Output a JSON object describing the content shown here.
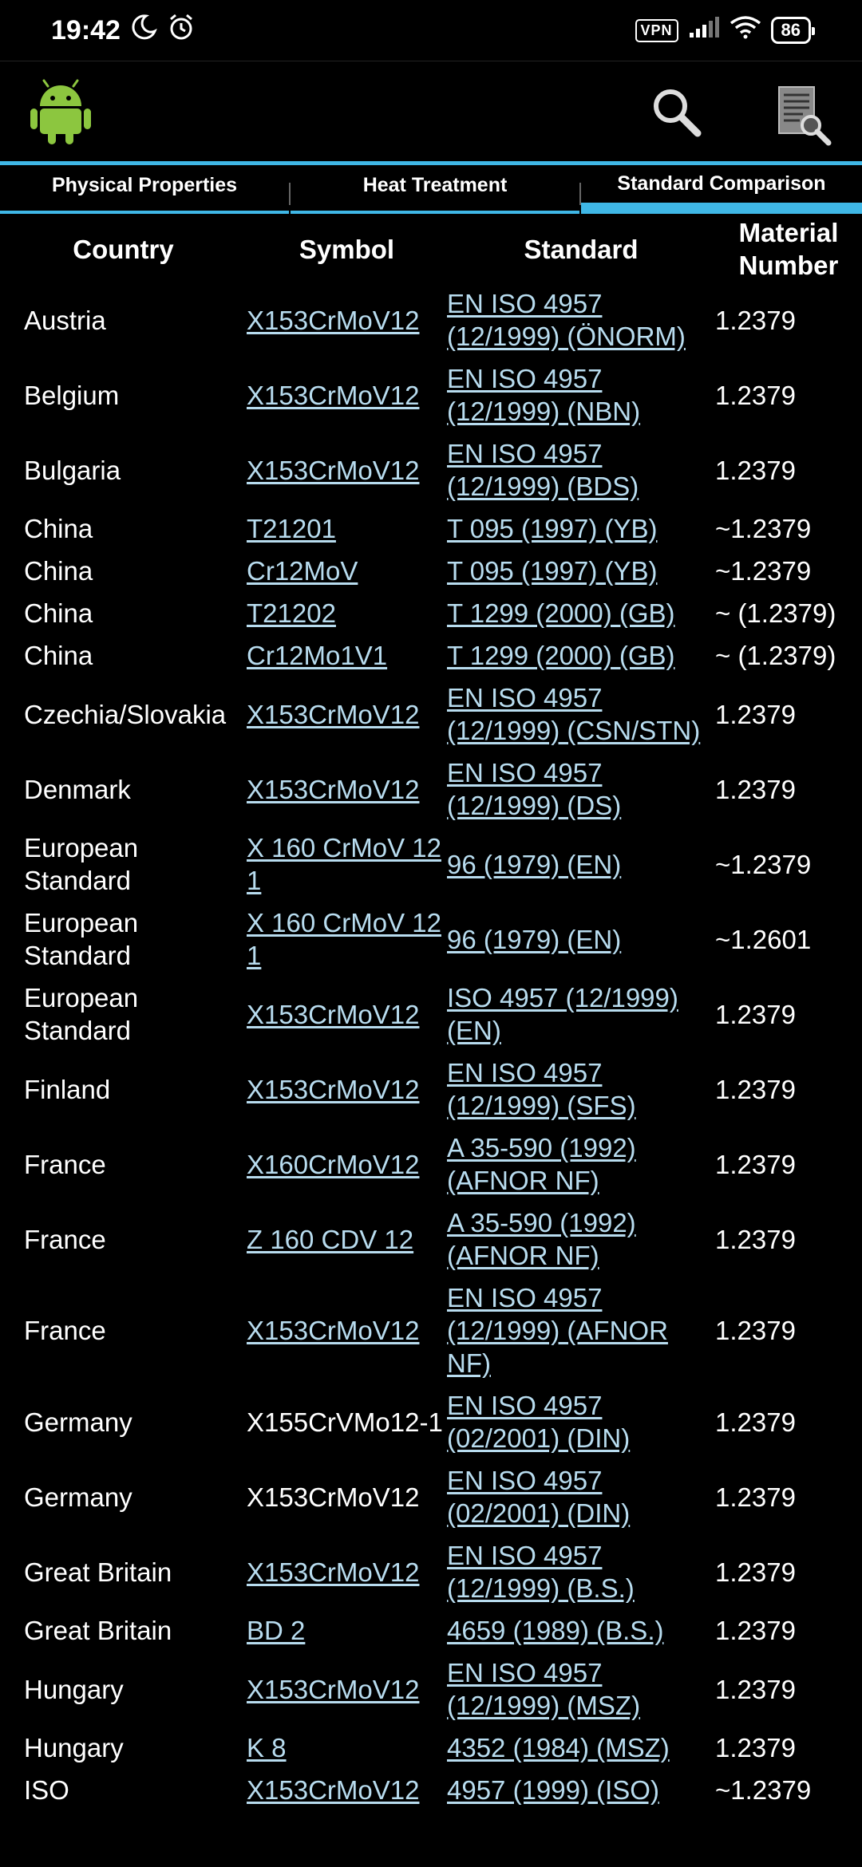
{
  "status_bar": {
    "time": "19:42",
    "vpn_label": "VPN",
    "battery": "86",
    "icons": [
      "moon-icon",
      "alarm-icon",
      "signal-icon",
      "wifi-icon"
    ]
  },
  "app_bar": {
    "icons": [
      "android-logo-icon",
      "search-icon",
      "document-search-icon"
    ]
  },
  "tabs": [
    {
      "label": "Physical Properties"
    },
    {
      "label": "Heat Treatment"
    },
    {
      "label": "Standard Comparison"
    }
  ],
  "colors": {
    "accent": "#3fb7e6",
    "link": "#b8dcef",
    "background": "#000000"
  },
  "table": {
    "headers": [
      "Country",
      "Symbol",
      "Standard",
      "Material Number"
    ],
    "rows": [
      {
        "country": "Austria",
        "symbol": "X153CrMoV12",
        "symbol_link": true,
        "standard": "EN ISO 4957 (12/1999) (ÖNORM)",
        "number": "1.2379"
      },
      {
        "country": "Belgium",
        "symbol": "X153CrMoV12",
        "symbol_link": true,
        "standard": "EN ISO 4957 (12/1999) (NBN)",
        "number": "1.2379"
      },
      {
        "country": "Bulgaria",
        "symbol": "X153CrMoV12",
        "symbol_link": true,
        "standard": "EN ISO 4957 (12/1999) (BDS)",
        "number": "1.2379"
      },
      {
        "country": "China",
        "symbol": "T21201",
        "symbol_link": true,
        "standard": "T 095 (1997) (YB)",
        "number": "~1.2379"
      },
      {
        "country": "China",
        "symbol": "Cr12MoV",
        "symbol_link": true,
        "standard": "T 095 (1997) (YB)",
        "number": "~1.2379"
      },
      {
        "country": "China",
        "symbol": "T21202",
        "symbol_link": true,
        "standard": "T 1299 (2000) (GB)",
        "number": "~ (1.2379)"
      },
      {
        "country": "China",
        "symbol": "Cr12Mo1V1",
        "symbol_link": true,
        "standard": "T 1299 (2000) (GB)",
        "number": "~ (1.2379)"
      },
      {
        "country": "Czechia/Slovakia",
        "symbol": "X153CrMoV12",
        "symbol_link": true,
        "standard": "EN ISO 4957 (12/1999) (CSN/STN)",
        "number": "1.2379"
      },
      {
        "country": "Denmark",
        "symbol": "X153CrMoV12",
        "symbol_link": true,
        "standard": "EN ISO 4957 (12/1999) (DS)",
        "number": "1.2379"
      },
      {
        "country": "European Standard",
        "symbol": "X 160 CrMoV 12 1",
        "symbol_link": true,
        "standard": "96 (1979) (EN)",
        "number": "~1.2379"
      },
      {
        "country": "European Standard",
        "symbol": "X 160 CrMoV 12 1",
        "symbol_link": true,
        "standard": "96 (1979) (EN)",
        "number": "~1.2601"
      },
      {
        "country": "European Standard",
        "symbol": "X153CrMoV12",
        "symbol_link": true,
        "standard": "ISO 4957 (12/1999) (EN)",
        "number": "1.2379"
      },
      {
        "country": "Finland",
        "symbol": "X153CrMoV12",
        "symbol_link": true,
        "standard": "EN ISO 4957 (12/1999) (SFS)",
        "number": "1.2379"
      },
      {
        "country": "France",
        "symbol": "X160CrMoV12",
        "symbol_link": true,
        "standard": "A 35-590 (1992) (AFNOR NF)",
        "number": "1.2379"
      },
      {
        "country": "France",
        "symbol": "Z 160 CDV 12",
        "symbol_link": true,
        "standard": "A 35-590 (1992) (AFNOR NF)",
        "number": "1.2379"
      },
      {
        "country": "France",
        "symbol": "X153CrMoV12",
        "symbol_link": true,
        "standard": "EN ISO 4957 (12/1999) (AFNOR NF)",
        "number": "1.2379"
      },
      {
        "country": "Germany",
        "symbol": "X155CrVMo12-1",
        "symbol_link": false,
        "standard": "EN ISO 4957 (02/2001) (DIN)",
        "number": "1.2379"
      },
      {
        "country": "Germany",
        "symbol": "X153CrMoV12",
        "symbol_link": false,
        "standard": "EN ISO 4957 (02/2001) (DIN)",
        "number": "1.2379"
      },
      {
        "country": "Great Britain",
        "symbol": "X153CrMoV12",
        "symbol_link": true,
        "standard": "EN ISO 4957 (12/1999) (B.S.)",
        "number": "1.2379"
      },
      {
        "country": "Great Britain",
        "symbol": "BD 2",
        "symbol_link": true,
        "standard": "4659 (1989) (B.S.)",
        "number": "1.2379"
      },
      {
        "country": "Hungary",
        "symbol": "X153CrMoV12",
        "symbol_link": true,
        "standard": "EN ISO 4957 (12/1999) (MSZ)",
        "number": "1.2379"
      },
      {
        "country": "Hungary",
        "symbol": "K 8",
        "symbol_link": true,
        "standard": "4352 (1984) (MSZ)",
        "number": "1.2379"
      },
      {
        "country": "ISO",
        "symbol": "X153CrMoV12",
        "symbol_link": true,
        "standard": "4957 (1999) (ISO)",
        "number": "~1.2379"
      }
    ]
  }
}
